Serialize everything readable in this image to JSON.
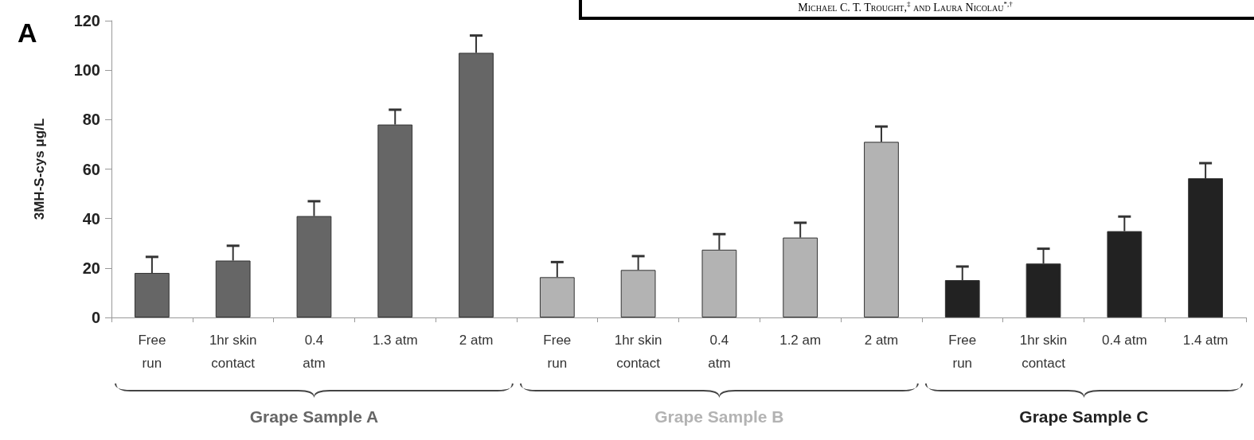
{
  "chart_data": {
    "type": "bar",
    "ylabel": "3MH-S-cys μg/L",
    "categories": [
      "Free\nrun",
      "1hr skin\ncontact",
      "0.4\natm",
      "1.3 atm",
      "2 atm",
      "Free\nrun",
      "1hr skin\ncontact",
      "0.4\natm",
      "1.2 am",
      "2 atm",
      "Free\nrun",
      "1hr skin\ncontact",
      "0.4 atm",
      "1.4 atm"
    ],
    "series": [
      {
        "name": "Grape Sample A",
        "color": "#666666",
        "values": [
          18,
          23,
          41,
          78,
          107,
          null,
          null,
          null,
          null,
          null,
          null,
          null,
          null,
          null
        ],
        "errors": [
          [
            18,
            24.5
          ],
          [
            23,
            29
          ],
          [
            41,
            47
          ],
          [
            78,
            84
          ],
          [
            107,
            114
          ],
          null,
          null,
          null,
          null,
          null,
          null,
          null,
          null,
          null
        ]
      },
      {
        "name": "Grape Sample B",
        "color": "#b3b3b3",
        "values": [
          null,
          null,
          null,
          null,
          null,
          16.3,
          19.2,
          27.4,
          32.3,
          71,
          null,
          null,
          null,
          null
        ],
        "errors": [
          null,
          null,
          null,
          null,
          null,
          [
            16.3,
            22.4
          ],
          [
            19.2,
            24.8
          ],
          [
            27.4,
            33.7
          ],
          [
            32.3,
            38.3
          ],
          [
            71,
            77.2
          ],
          null,
          null,
          null,
          null
        ]
      },
      {
        "name": "Grape Sample C",
        "color": "#222222",
        "values": [
          null,
          null,
          null,
          null,
          null,
          null,
          null,
          null,
          null,
          null,
          15.1,
          21.8,
          34.9,
          56.3
        ],
        "errors": [
          null,
          null,
          null,
          null,
          null,
          null,
          null,
          null,
          null,
          null,
          [
            15.1,
            20.6
          ],
          [
            21.8,
            27.8
          ],
          [
            34.9,
            40.8
          ],
          [
            56.3,
            62.4
          ]
        ]
      }
    ],
    "ylim": [
      0,
      120
    ],
    "yticks": [
      0,
      20,
      40,
      60,
      80,
      100,
      120
    ],
    "grid": false,
    "legend": false,
    "annotations": [
      "A",
      "Michael C. T. Trought,$^{‡}$ and Laura Nicolau$^{*,†}$"
    ]
  }
}
